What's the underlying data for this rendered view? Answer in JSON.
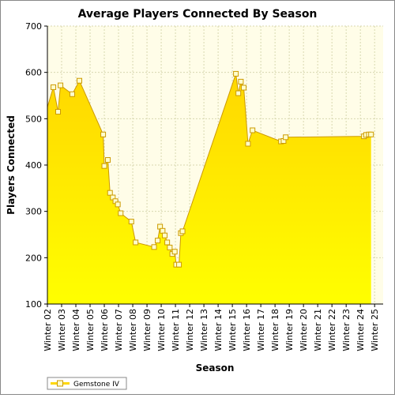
{
  "chart_data": {
    "type": "area",
    "title": "Average Players Connected By Season",
    "xlabel": "Season",
    "ylabel": "Players Connected",
    "ylim": [
      100,
      700
    ],
    "yticks": [
      100,
      200,
      300,
      400,
      500,
      600,
      700
    ],
    "xlim": [
      2002.0,
      2025.6
    ],
    "xticks": [
      {
        "x": 2002,
        "label": "Winter 02"
      },
      {
        "x": 2003,
        "label": "Winter 03"
      },
      {
        "x": 2004,
        "label": "Winter 04"
      },
      {
        "x": 2005,
        "label": "Winter 05"
      },
      {
        "x": 2006,
        "label": "Winter 06"
      },
      {
        "x": 2007,
        "label": "Winter 07"
      },
      {
        "x": 2008,
        "label": "Winter 08"
      },
      {
        "x": 2009,
        "label": "Winter 09"
      },
      {
        "x": 2010,
        "label": "Winter 10"
      },
      {
        "x": 2011,
        "label": "Winter 11"
      },
      {
        "x": 2012,
        "label": "Winter 12"
      },
      {
        "x": 2013,
        "label": "Winter 13"
      },
      {
        "x": 2014,
        "label": "Winter 14"
      },
      {
        "x": 2015,
        "label": "Winter 15"
      },
      {
        "x": 2016,
        "label": "Winter 16"
      },
      {
        "x": 2017,
        "label": "Winter 17"
      },
      {
        "x": 2018,
        "label": "Winter 18"
      },
      {
        "x": 2019,
        "label": "Winter 19"
      },
      {
        "x": 2020,
        "label": "Winter 20"
      },
      {
        "x": 2021,
        "label": "Winter 21"
      },
      {
        "x": 2022,
        "label": "Winter 22"
      },
      {
        "x": 2023,
        "label": "Winter 23"
      },
      {
        "x": 2024,
        "label": "Winter 24"
      },
      {
        "x": 2025,
        "label": "Winter 25"
      }
    ],
    "grid": true,
    "legend_position": "bottom-left",
    "colors": {
      "area_top": "#ffd700",
      "area_bottom": "#ffff00",
      "line": "#cc9900",
      "marker_fill": "#ffffcc",
      "plot_bg": "#fffde8",
      "grid": "#d8d8b0"
    },
    "series": [
      {
        "name": "Gemstone IV",
        "x": [
          2002.0,
          2002.42,
          2002.75,
          2002.92,
          2003.75,
          2004.25,
          2005.92,
          2006.0,
          2006.25,
          2006.4,
          2006.6,
          2006.78,
          2006.95,
          2007.15,
          2007.9,
          2008.2,
          2009.5,
          2009.75,
          2009.92,
          2010.1,
          2010.25,
          2010.42,
          2010.6,
          2010.78,
          2010.95,
          2011.05,
          2011.25,
          2011.38,
          2011.5,
          2015.25,
          2015.42,
          2015.6,
          2015.8,
          2016.1,
          2016.42,
          2018.42,
          2018.6,
          2018.75,
          2024.25,
          2024.4,
          2024.6,
          2024.75
        ],
        "y": [
          525,
          568,
          515,
          572,
          553,
          582,
          466,
          398,
          411,
          340,
          330,
          322,
          315,
          296,
          278,
          233,
          223,
          237,
          267,
          258,
          248,
          233,
          222,
          208,
          213,
          185,
          185,
          253,
          257,
          597,
          555,
          580,
          567,
          446,
          475,
          451,
          452,
          460,
          462,
          465,
          466,
          466
        ]
      }
    ]
  }
}
